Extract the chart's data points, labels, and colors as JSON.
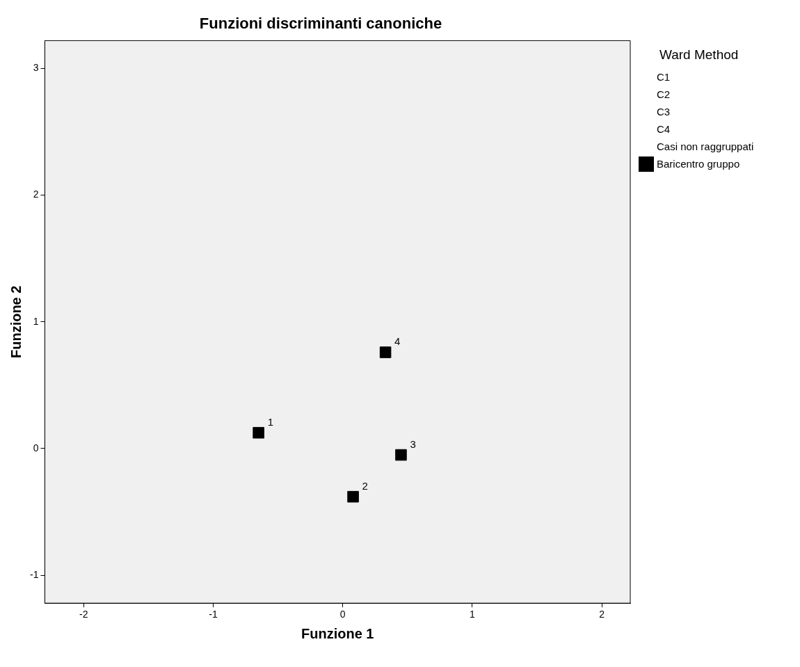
{
  "chart_data": {
    "type": "scatter",
    "title": "Funzioni discriminanti canoniche",
    "xlabel": "Funzione 1",
    "ylabel": "Funzione 2",
    "legend_title": "Ward Method",
    "xlim": [
      -2.3,
      2.22
    ],
    "xticks": [
      -2,
      -1,
      0,
      1,
      2
    ],
    "ylim": [
      -1.22,
      3.22
    ],
    "yticks": [
      -1,
      0,
      1,
      2,
      3
    ],
    "grid": false,
    "legend": "right",
    "marker": "square",
    "series": [
      {
        "name": "C1"
      },
      {
        "name": "C2"
      },
      {
        "name": "C3"
      },
      {
        "name": "C4"
      },
      {
        "name": "Casi non raggruppati"
      },
      {
        "name": "Baricentro gruppo",
        "color": "#000000",
        "x": [
          -0.65,
          0.08,
          0.45,
          0.33
        ],
        "values": [
          0.125,
          -0.38,
          -0.05,
          0.76
        ]
      }
    ],
    "annotations": [
      {
        "text": "1",
        "x": -0.65,
        "y": 0.125
      },
      {
        "text": "2",
        "x": 0.08,
        "y": -0.38
      },
      {
        "text": "3",
        "x": 0.45,
        "y": -0.05
      },
      {
        "text": "4",
        "x": 0.33,
        "y": 0.76
      }
    ]
  }
}
